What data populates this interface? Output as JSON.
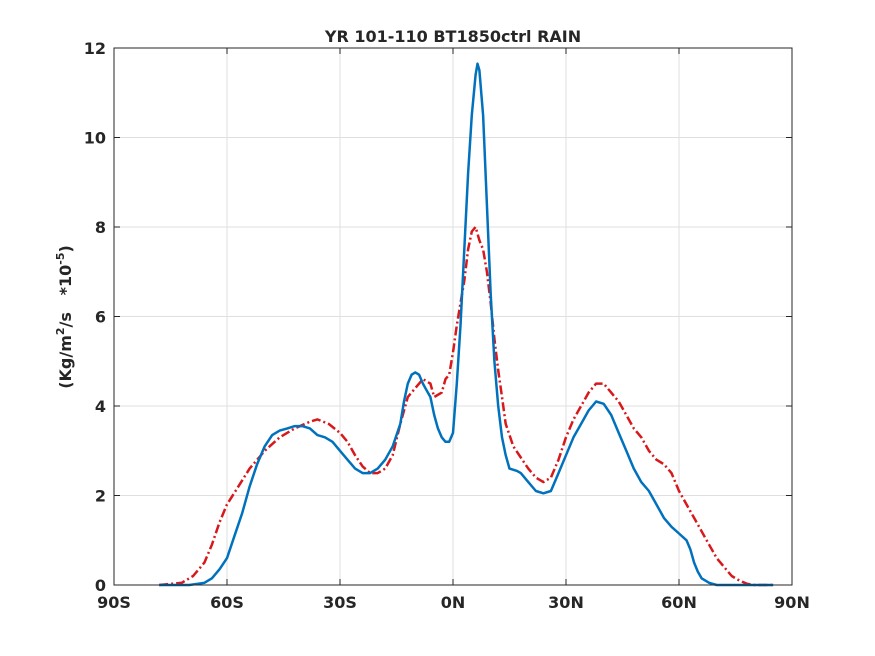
{
  "chart_data": {
    "type": "line",
    "title": "YR 101-110 BT1850ctrl RAIN",
    "xlabel": "",
    "ylabel": {
      "base": "(Kg/m",
      "exp1": "2",
      "mid": "/s   *10",
      "exp2": "-5",
      "end": ")"
    },
    "xlim": [
      -90,
      90
    ],
    "ylim": [
      0,
      12
    ],
    "grid": true,
    "legend": "none",
    "xticks": [
      {
        "value": -90,
        "label": "90S"
      },
      {
        "value": -60,
        "label": "60S"
      },
      {
        "value": -30,
        "label": "30S"
      },
      {
        "value": 0,
        "label": "0N"
      },
      {
        "value": 30,
        "label": "30N"
      },
      {
        "value": 60,
        "label": "60N"
      },
      {
        "value": 90,
        "label": "90N"
      }
    ],
    "yticks": [
      {
        "value": 0,
        "label": "0"
      },
      {
        "value": 2,
        "label": "2"
      },
      {
        "value": 4,
        "label": "4"
      },
      {
        "value": 6,
        "label": "6"
      },
      {
        "value": 8,
        "label": "8"
      },
      {
        "value": 10,
        "label": "10"
      },
      {
        "value": 12,
        "label": "12"
      }
    ],
    "series": [
      {
        "color": "#d7191c",
        "dash": "dash-dot",
        "points": [
          [
            -78,
            0.0
          ],
          [
            -72,
            0.05
          ],
          [
            -69,
            0.2
          ],
          [
            -66,
            0.5
          ],
          [
            -64,
            0.9
          ],
          [
            -62,
            1.4
          ],
          [
            -60,
            1.8
          ],
          [
            -57,
            2.2
          ],
          [
            -54,
            2.6
          ],
          [
            -50,
            3.0
          ],
          [
            -46,
            3.3
          ],
          [
            -42,
            3.5
          ],
          [
            -38,
            3.65
          ],
          [
            -36,
            3.7
          ],
          [
            -33,
            3.6
          ],
          [
            -30,
            3.4
          ],
          [
            -28,
            3.2
          ],
          [
            -26,
            2.9
          ],
          [
            -24,
            2.65
          ],
          [
            -22,
            2.5
          ],
          [
            -20,
            2.5
          ],
          [
            -18,
            2.6
          ],
          [
            -16,
            2.9
          ],
          [
            -14,
            3.6
          ],
          [
            -12,
            4.2
          ],
          [
            -10,
            4.4
          ],
          [
            -8,
            4.6
          ],
          [
            -6,
            4.5
          ],
          [
            -5,
            4.2
          ],
          [
            -3,
            4.3
          ],
          [
            -2,
            4.6
          ],
          [
            -1,
            4.7
          ],
          [
            0,
            5.2
          ],
          [
            1,
            5.8
          ],
          [
            2,
            6.3
          ],
          [
            3,
            6.8
          ],
          [
            4,
            7.5
          ],
          [
            5,
            7.9
          ],
          [
            6,
            8.0
          ],
          [
            7,
            7.7
          ],
          [
            8,
            7.5
          ],
          [
            9,
            7.0
          ],
          [
            10,
            6.3
          ],
          [
            11,
            5.5
          ],
          [
            12,
            4.8
          ],
          [
            13,
            4.2
          ],
          [
            14,
            3.6
          ],
          [
            16,
            3.1
          ],
          [
            18,
            2.85
          ],
          [
            20,
            2.6
          ],
          [
            22,
            2.4
          ],
          [
            24,
            2.3
          ],
          [
            26,
            2.4
          ],
          [
            28,
            2.8
          ],
          [
            30,
            3.3
          ],
          [
            32,
            3.7
          ],
          [
            34,
            4.0
          ],
          [
            36,
            4.3
          ],
          [
            38,
            4.5
          ],
          [
            40,
            4.5
          ],
          [
            42,
            4.3
          ],
          [
            44,
            4.1
          ],
          [
            46,
            3.8
          ],
          [
            48,
            3.5
          ],
          [
            50,
            3.3
          ],
          [
            52,
            3.0
          ],
          [
            54,
            2.8
          ],
          [
            56,
            2.7
          ],
          [
            58,
            2.5
          ],
          [
            60,
            2.1
          ],
          [
            62,
            1.8
          ],
          [
            64,
            1.5
          ],
          [
            66,
            1.2
          ],
          [
            68,
            0.9
          ],
          [
            70,
            0.6
          ],
          [
            72,
            0.4
          ],
          [
            74,
            0.2
          ],
          [
            76,
            0.1
          ],
          [
            78,
            0.03
          ],
          [
            80,
            0.0
          ],
          [
            85,
            0.0
          ]
        ]
      },
      {
        "color": "#0072bd",
        "dash": "solid",
        "points": [
          [
            -78,
            0.0
          ],
          [
            -70,
            0.0
          ],
          [
            -66,
            0.05
          ],
          [
            -64,
            0.15
          ],
          [
            -62,
            0.35
          ],
          [
            -60,
            0.6
          ],
          [
            -58,
            1.1
          ],
          [
            -56,
            1.6
          ],
          [
            -54,
            2.2
          ],
          [
            -52,
            2.7
          ],
          [
            -50,
            3.1
          ],
          [
            -48,
            3.35
          ],
          [
            -46,
            3.45
          ],
          [
            -44,
            3.5
          ],
          [
            -42,
            3.55
          ],
          [
            -40,
            3.55
          ],
          [
            -38,
            3.5
          ],
          [
            -36,
            3.35
          ],
          [
            -34,
            3.3
          ],
          [
            -32,
            3.2
          ],
          [
            -30,
            3.0
          ],
          [
            -28,
            2.8
          ],
          [
            -26,
            2.6
          ],
          [
            -24,
            2.5
          ],
          [
            -22,
            2.5
          ],
          [
            -20,
            2.6
          ],
          [
            -18,
            2.8
          ],
          [
            -16,
            3.1
          ],
          [
            -14,
            3.6
          ],
          [
            -13,
            4.1
          ],
          [
            -12,
            4.5
          ],
          [
            -11,
            4.7
          ],
          [
            -10,
            4.75
          ],
          [
            -9,
            4.7
          ],
          [
            -8,
            4.5
          ],
          [
            -7,
            4.35
          ],
          [
            -6,
            4.2
          ],
          [
            -5,
            3.8
          ],
          [
            -4,
            3.5
          ],
          [
            -3,
            3.3
          ],
          [
            -2,
            3.2
          ],
          [
            -1,
            3.2
          ],
          [
            0,
            3.4
          ],
          [
            1,
            4.5
          ],
          [
            2,
            5.8
          ],
          [
            3,
            7.5
          ],
          [
            4,
            9.2
          ],
          [
            5,
            10.5
          ],
          [
            6,
            11.4
          ],
          [
            6.5,
            11.65
          ],
          [
            7,
            11.5
          ],
          [
            8,
            10.5
          ],
          [
            9,
            8.5
          ],
          [
            10,
            6.5
          ],
          [
            11,
            5.0
          ],
          [
            12,
            4.0
          ],
          [
            13,
            3.3
          ],
          [
            14,
            2.9
          ],
          [
            15,
            2.6
          ],
          [
            17,
            2.55
          ],
          [
            18,
            2.5
          ],
          [
            20,
            2.3
          ],
          [
            22,
            2.1
          ],
          [
            24,
            2.05
          ],
          [
            26,
            2.1
          ],
          [
            28,
            2.5
          ],
          [
            30,
            2.9
          ],
          [
            32,
            3.3
          ],
          [
            34,
            3.6
          ],
          [
            36,
            3.9
          ],
          [
            38,
            4.1
          ],
          [
            40,
            4.05
          ],
          [
            42,
            3.8
          ],
          [
            44,
            3.4
          ],
          [
            46,
            3.0
          ],
          [
            48,
            2.6
          ],
          [
            50,
            2.3
          ],
          [
            52,
            2.1
          ],
          [
            54,
            1.8
          ],
          [
            56,
            1.5
          ],
          [
            58,
            1.3
          ],
          [
            60,
            1.15
          ],
          [
            62,
            1.0
          ],
          [
            63,
            0.8
          ],
          [
            64,
            0.5
          ],
          [
            65,
            0.3
          ],
          [
            66,
            0.15
          ],
          [
            68,
            0.05
          ],
          [
            70,
            0.0
          ],
          [
            80,
            0.0
          ],
          [
            85,
            0.0
          ]
        ]
      }
    ]
  }
}
